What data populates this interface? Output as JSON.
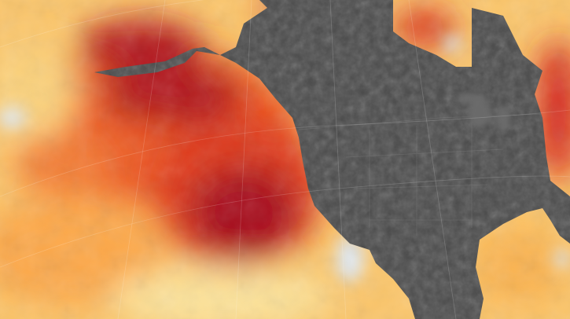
{
  "map": {
    "colors": {
      "ocean_base": "#fcc66a",
      "warm_anomaly": "#e2401c",
      "hot_anomaly": "#a8081a",
      "cool_anomaly": "#dfe8f2",
      "land": "#4a4a4a"
    }
  }
}
